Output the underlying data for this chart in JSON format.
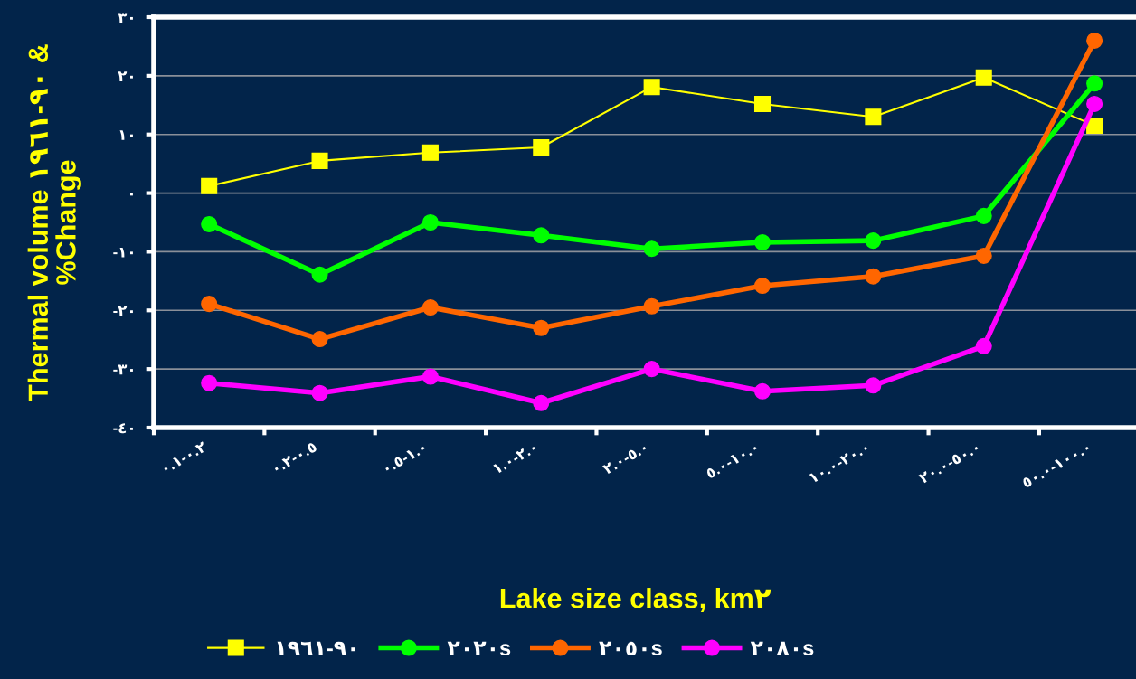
{
  "chart_data": {
    "type": "line",
    "ylabel": "Thermal volume ١٩٦١-٩٠ &\n%Change",
    "xlabel": "Lake size class, km٢",
    "categories": [
      "٠.١-٠.٢",
      "٠.٢-٠.٥",
      "٠.٥-١.٠",
      "١.٠-٢.٠",
      "٢.٠-٥.٠",
      "٥.٠-١٠.٠",
      "١٠.٠-٢٠.٠",
      "٢٠.٠-٥٠.٠",
      "٥٠.٠-١٠٠.٠"
    ],
    "series": [
      {
        "name": "١٩٦١-٩٠",
        "color": "#ffff00",
        "marker": "square",
        "values": [
          1.2,
          5.5,
          6.9,
          7.8,
          18.1,
          15.2,
          13.0,
          19.7,
          11.5
        ]
      },
      {
        "name": "٢٠٢٠s",
        "color": "#00ff00",
        "marker": "circle",
        "values": [
          -5.3,
          -13.9,
          -5.0,
          -7.2,
          -9.5,
          -8.4,
          -8.1,
          -3.9,
          18.7
        ]
      },
      {
        "name": "٢٠٥٠s",
        "color": "#ff6600",
        "marker": "circle",
        "values": [
          -18.9,
          -24.9,
          -19.5,
          -23.0,
          -19.3,
          -15.8,
          -14.2,
          -10.7,
          26.0
        ]
      },
      {
        "name": "٢٠٨٠s",
        "color": "#ff00ff",
        "marker": "circle",
        "values": [
          -32.4,
          -34.1,
          -31.3,
          -35.8,
          -30.0,
          -33.8,
          -32.8,
          -26.1,
          15.2
        ]
      }
    ],
    "ylim": [
      -40,
      30
    ],
    "yticks": [
      {
        "value": -40,
        "label": "-٤٠"
      },
      {
        "value": -30,
        "label": "-٣٠"
      },
      {
        "value": -20,
        "label": "-٢٠"
      },
      {
        "value": -10,
        "label": "-١٠"
      },
      {
        "value": 0,
        "label": "٠"
      },
      {
        "value": 10,
        "label": "١٠"
      },
      {
        "value": 20,
        "label": "٢٠"
      },
      {
        "value": 30,
        "label": "٣٠"
      }
    ],
    "grid": "y",
    "legend": "bottom",
    "line_style": "solid"
  }
}
